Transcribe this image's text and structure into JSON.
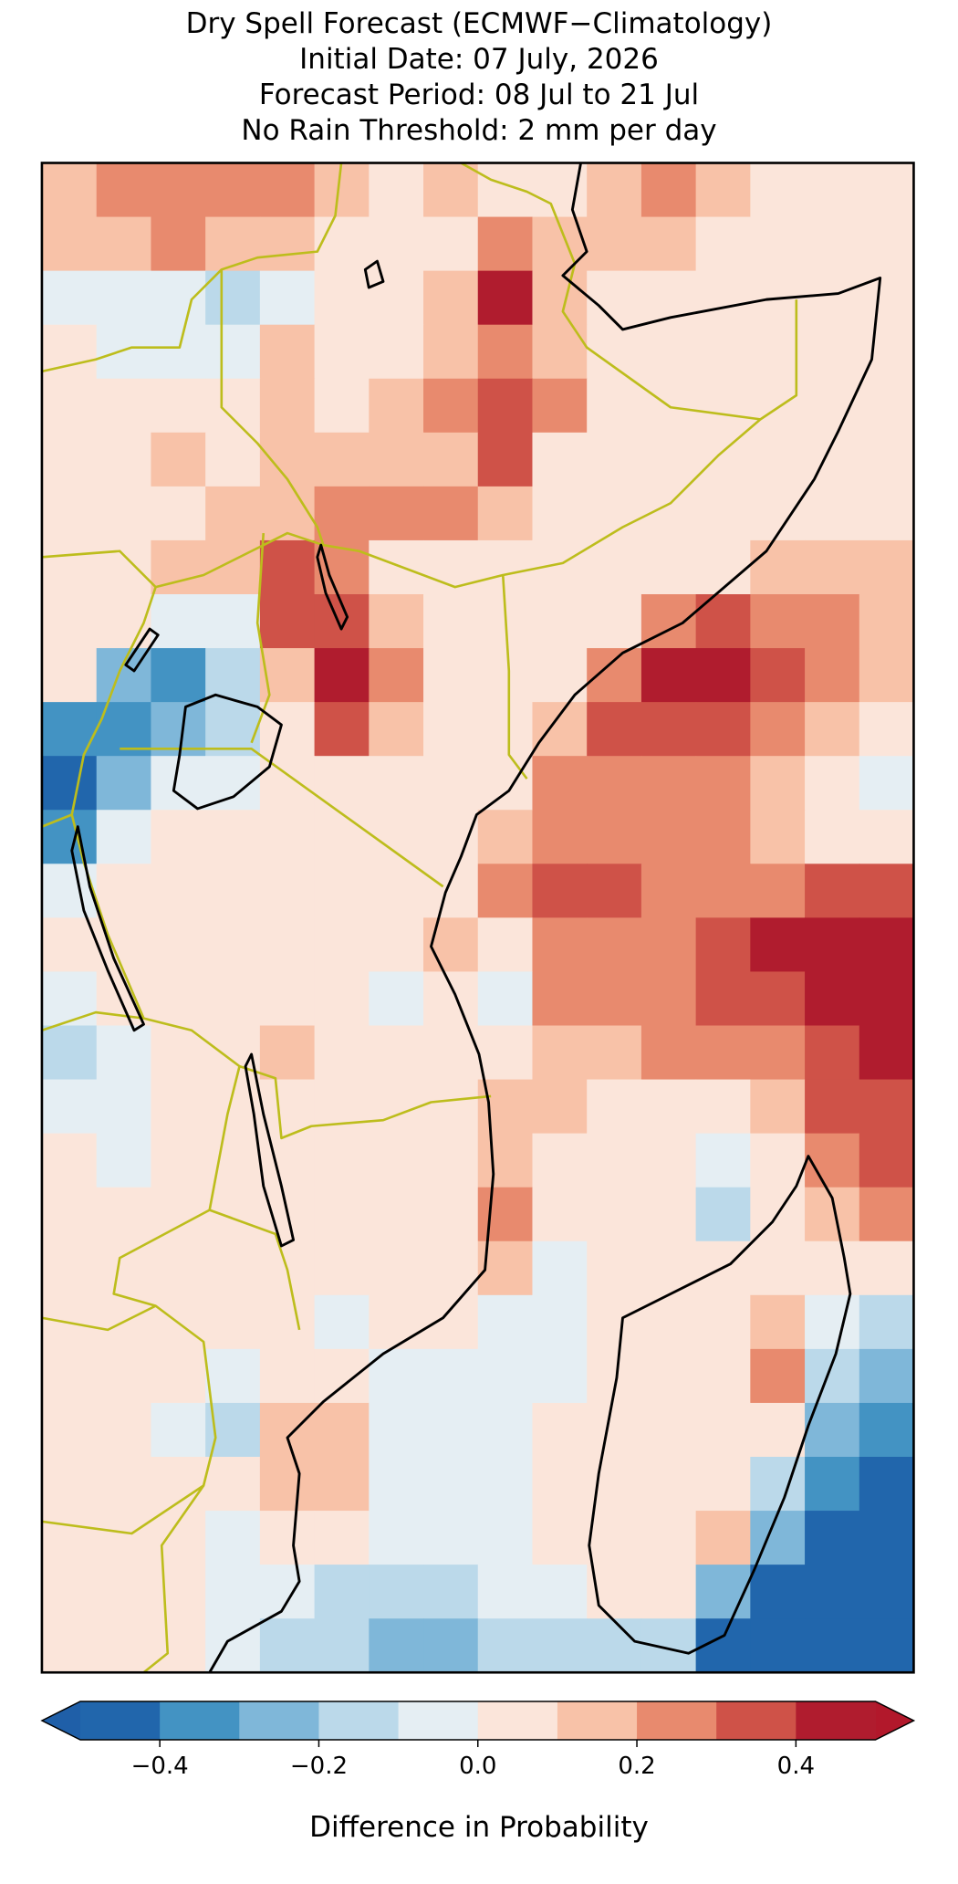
{
  "map": {
    "title": [
      "Dry Spell Forecast (ECMWF−Climatology)",
      "Initial Date: 07 July, 2026",
      "Forecast Period: 08 Jul to 21 Jul",
      "No Rain Threshold: 2 mm per day"
    ],
    "grid": {
      "values": [
        [
          0.15,
          0.2,
          0.25,
          0.2,
          0.25,
          0.15,
          0.05,
          0.1,
          0.05,
          0.05,
          0.15,
          0.2,
          0.15,
          0.05,
          0.05,
          0.05
        ],
        [
          0.1,
          0.15,
          0.2,
          0.15,
          0.1,
          0.05,
          0.05,
          0.05,
          0.25,
          0.15,
          0.1,
          0.15,
          0.05,
          0.05,
          0.05,
          0.05
        ],
        [
          -0.05,
          -0.05,
          -0.1,
          -0.15,
          -0.05,
          0.05,
          0.05,
          0.1,
          0.45,
          0.1,
          0.05,
          0.05,
          0.05,
          0.05,
          0.05,
          0.05
        ],
        [
          0.05,
          -0.05,
          -0.05,
          -0.05,
          0.1,
          0.05,
          0.05,
          0.15,
          0.2,
          0.15,
          0.05,
          0.05,
          0.05,
          0.05,
          0.05,
          0.05
        ],
        [
          0.05,
          0.05,
          0.05,
          0.05,
          0.15,
          0.05,
          0.15,
          0.25,
          0.35,
          0.2,
          0.05,
          0.05,
          0.05,
          0.05,
          0.05,
          0.05
        ],
        [
          0.05,
          0.05,
          0.1,
          0.05,
          0.1,
          0.15,
          0.1,
          0.15,
          0.35,
          0.05,
          0.05,
          0.05,
          0.05,
          0.05,
          0.05,
          0.05
        ],
        [
          0.05,
          0.05,
          0.05,
          0.1,
          0.15,
          0.25,
          0.2,
          0.25,
          0.15,
          0.05,
          0.05,
          0.05,
          0.05,
          0.05,
          0.05,
          0.05
        ],
        [
          0.05,
          0.05,
          0.1,
          0.15,
          0.3,
          0.2,
          0.05,
          0.05,
          0.05,
          0.05,
          0.05,
          0.05,
          0.05,
          0.15,
          0.15,
          0.15
        ],
        [
          0.05,
          0.05,
          -0.05,
          -0.1,
          0.35,
          0.35,
          0.1,
          0.05,
          0.05,
          0.05,
          0.05,
          0.2,
          0.3,
          0.25,
          0.2,
          0.15
        ],
        [
          0.05,
          -0.25,
          -0.35,
          -0.2,
          0.15,
          0.45,
          0.2,
          0.05,
          0.05,
          0.05,
          0.25,
          0.45,
          0.4,
          0.3,
          0.2,
          0.1
        ],
        [
          -0.35,
          -0.35,
          -0.25,
          -0.15,
          0.05,
          0.35,
          0.15,
          0.05,
          0.05,
          0.15,
          0.3,
          0.3,
          0.3,
          0.2,
          0.1,
          0.05
        ],
        [
          -0.45,
          -0.25,
          -0.05,
          -0.05,
          0.05,
          0.05,
          0.05,
          0.05,
          0.05,
          0.2,
          0.25,
          0.25,
          0.25,
          0.15,
          0.05,
          -0.1
        ],
        [
          -0.4,
          -0.05,
          0.05,
          0.05,
          0.05,
          0.05,
          0.05,
          0.05,
          0.15,
          0.25,
          0.25,
          0.2,
          0.25,
          0.15,
          0.05,
          0.05
        ],
        [
          -0.05,
          0.05,
          0.05,
          0.05,
          0.05,
          0.05,
          0.05,
          0.05,
          0.2,
          0.35,
          0.3,
          0.2,
          0.2,
          0.25,
          0.3,
          0.35
        ],
        [
          0.05,
          0.05,
          0.05,
          0.05,
          0.05,
          0.05,
          0.05,
          0.1,
          0.05,
          0.2,
          0.25,
          0.2,
          0.3,
          0.4,
          0.4,
          0.45
        ],
        [
          -0.05,
          0.05,
          0.05,
          0.05,
          0.05,
          0.05,
          -0.05,
          0.05,
          -0.05,
          0.2,
          0.25,
          0.25,
          0.3,
          0.35,
          0.45,
          0.45
        ],
        [
          -0.15,
          -0.05,
          0.05,
          0.05,
          0.1,
          0.05,
          0.05,
          0.05,
          0.05,
          0.15,
          0.15,
          0.2,
          0.2,
          0.25,
          0.35,
          0.45
        ],
        [
          -0.05,
          -0.05,
          0.05,
          0.05,
          0.05,
          0.05,
          0.05,
          0.05,
          0.15,
          0.15,
          0.05,
          0.05,
          0.05,
          0.15,
          0.35,
          0.35
        ],
        [
          0.05,
          -0.05,
          0.05,
          0.05,
          0.05,
          0.05,
          0.05,
          0.05,
          0.15,
          0.05,
          0.05,
          0.05,
          -0.05,
          0.05,
          0.25,
          0.35
        ],
        [
          0.05,
          0.05,
          0.05,
          0.05,
          0.05,
          0.05,
          0.05,
          0.05,
          0.25,
          0.05,
          0.05,
          0.05,
          -0.2,
          0.05,
          0.15,
          0.2
        ],
        [
          0.05,
          0.05,
          0.05,
          0.05,
          0.05,
          0.05,
          0.05,
          0.05,
          0.1,
          -0.05,
          0.05,
          0.05,
          0.05,
          0.05,
          0.05,
          0.05
        ],
        [
          0.05,
          0.05,
          0.05,
          0.05,
          0.05,
          -0.05,
          0.05,
          0.05,
          -0.05,
          -0.05,
          0.05,
          0.05,
          0.05,
          0.1,
          -0.05,
          -0.15
        ],
        [
          0.05,
          0.05,
          0.05,
          -0.05,
          0.05,
          0.05,
          -0.05,
          -0.05,
          -0.05,
          -0.05,
          0.05,
          0.05,
          0.05,
          0.2,
          -0.15,
          -0.25
        ],
        [
          0.05,
          0.05,
          -0.05,
          -0.15,
          0.15,
          0.15,
          -0.05,
          -0.05,
          -0.05,
          0.05,
          0.05,
          0.05,
          0.05,
          0.05,
          -0.25,
          -0.4
        ],
        [
          0.05,
          0.05,
          0.05,
          0.05,
          0.15,
          0.15,
          -0.05,
          -0.05,
          -0.05,
          0.05,
          0.05,
          0.05,
          0.05,
          -0.15,
          -0.4,
          -0.45
        ],
        [
          0.05,
          0.05,
          0.05,
          -0.05,
          0.05,
          0.05,
          -0.05,
          -0.05,
          -0.05,
          0.05,
          0.05,
          0.05,
          0.1,
          -0.3,
          -0.45,
          -0.45
        ],
        [
          0.05,
          0.05,
          0.05,
          -0.05,
          -0.05,
          -0.15,
          -0.15,
          -0.15,
          -0.05,
          -0.05,
          0.05,
          0.05,
          -0.25,
          -0.45,
          -0.45,
          -0.45
        ],
        [
          0.05,
          0.05,
          0.05,
          -0.05,
          -0.15,
          -0.2,
          -0.25,
          -0.25,
          -0.15,
          -0.15,
          -0.15,
          -0.15,
          -0.45,
          -0.45,
          -0.45,
          -0.45
        ]
      ]
    },
    "colorbar": {
      "label": "Difference in Probability",
      "levels": [
        -0.5,
        -0.4,
        -0.3,
        -0.2,
        -0.1,
        0,
        0.1,
        0.2,
        0.3,
        0.4,
        0.5
      ],
      "colors": [
        "#2166ac",
        "#4393c3",
        "#7fb7d9",
        "#bbd9ea",
        "#e5eef3",
        "#fbe5da",
        "#f8c2a8",
        "#e88a6e",
        "#cf5248",
        "#b01c2e"
      ],
      "under_color": "#1f5fa8",
      "over_color": "#b2182b",
      "ticks": [
        {
          "value": -0.4,
          "label": "−0.4"
        },
        {
          "value": -0.2,
          "label": "−0.2"
        },
        {
          "value": 0,
          "label": "0.0"
        },
        0.2,
        0.4
      ]
    }
  }
}
